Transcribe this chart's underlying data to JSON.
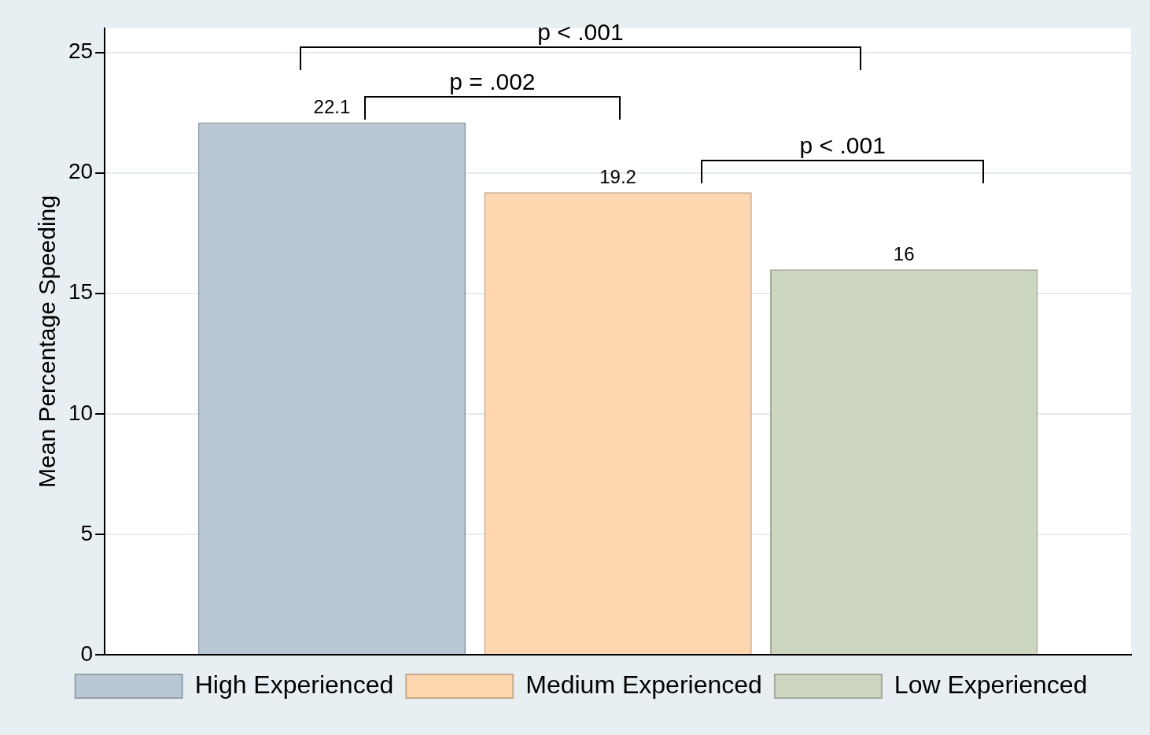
{
  "chart_data": {
    "type": "bar",
    "ylabel": "Mean Percentage Speeding",
    "categories": [
      null
    ],
    "series": [
      {
        "name": "High Experienced",
        "color": "#b9c8d4",
        "values": [
          22.1
        ]
      },
      {
        "name": "Medium Experienced",
        "color": "#fed6b0",
        "values": [
          19.2
        ]
      },
      {
        "name": "Low Experienced",
        "color": "#cdd6c1",
        "values": [
          16
        ]
      }
    ],
    "ylim": [
      0,
      26
    ],
    "yticks": [
      0,
      5,
      10,
      15,
      20,
      25
    ],
    "grid": "y",
    "legend": "bottom",
    "data_labels": true,
    "annotations": [
      "p < .001",
      "p = .002",
      "p < .001"
    ]
  }
}
